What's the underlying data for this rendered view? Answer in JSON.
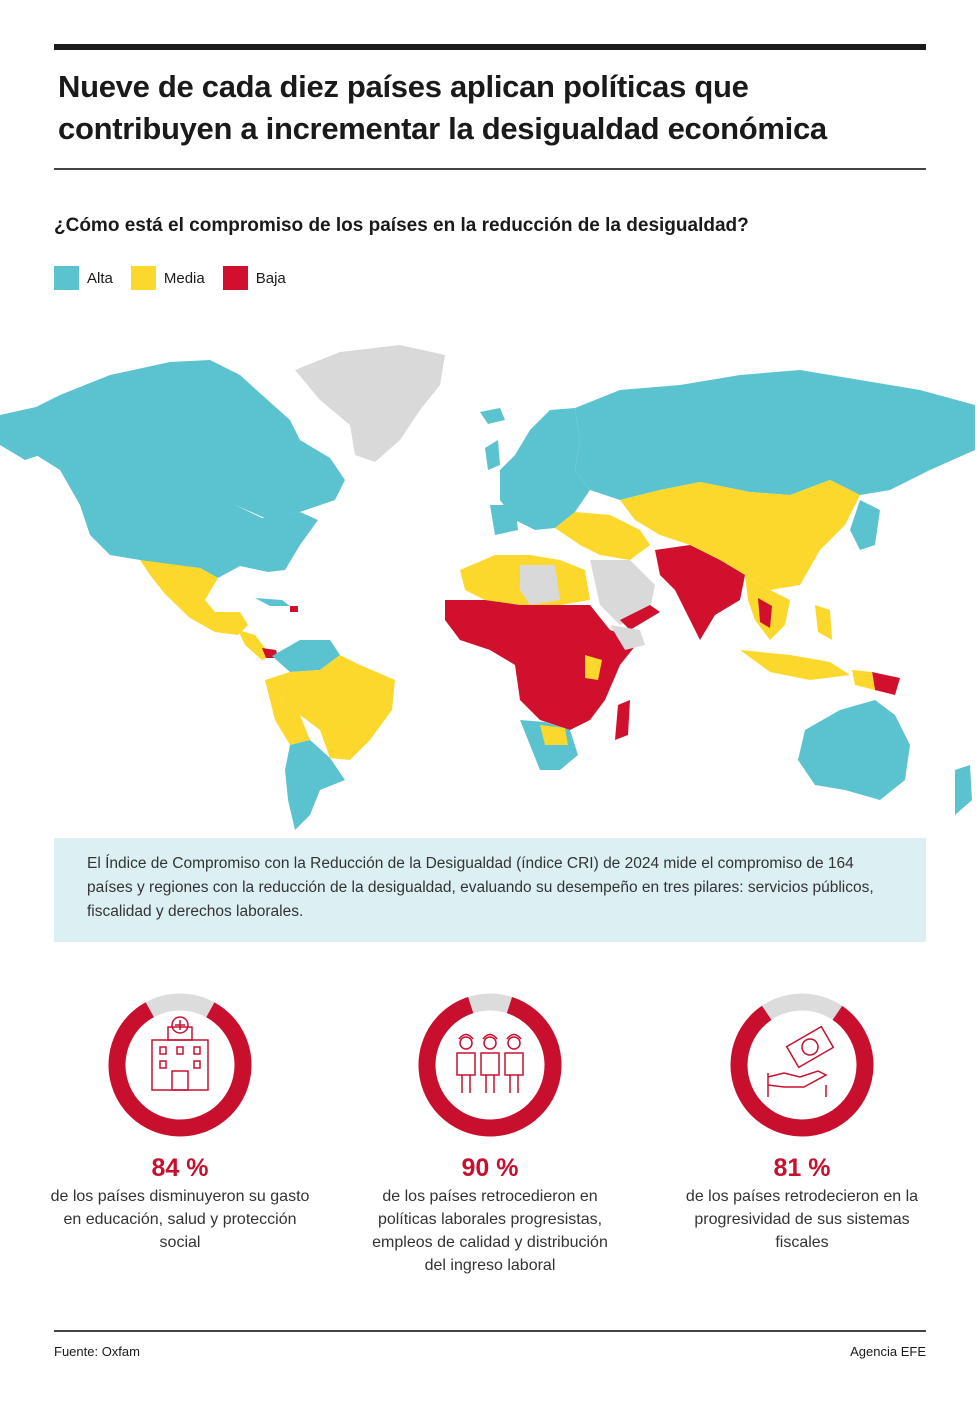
{
  "title": "Nueve de cada diez países aplican políticas que contribuyen a incrementar la desigualdad económica",
  "subtitle": "¿Cómo está el compromiso de los países en la reducción de la desigualdad?",
  "legend": [
    {
      "label": "Alta",
      "color": "#5bc3d0"
    },
    {
      "label": "Media",
      "color": "#fbd82b"
    },
    {
      "label": "Baja",
      "color": "#d0102d"
    }
  ],
  "colors": {
    "no_data": "#d9d9d9",
    "ring_bg": "#dcdcdc",
    "ring_fg": "#c8102e"
  },
  "info": "El  Índice de Compromiso con la Reducción de la Desigualdad (índice CRI) de 2024 mide el compromiso de 164 países y regiones con la reducción de la desigualdad, evaluando su desempeño en tres pilares: servicios públicos, fiscalidad y derechos laborales.",
  "stats": [
    {
      "percent_label": "84 %",
      "value": 84,
      "icon": "hospital-icon",
      "text": "de los países disminuyeron su gasto en educación, salud y protección social"
    },
    {
      "percent_label": "90 %",
      "value": 90,
      "icon": "workers-icon",
      "text": "de los países retrocedieron en políticas laborales progresistas, empleos de calidad y distribución del ingreso laboral"
    },
    {
      "percent_label": "81 %",
      "value": 81,
      "icon": "money-hand-icon",
      "text": "de los países retrodecieron en la progresividad de sus sistemas fiscales"
    }
  ],
  "footer": {
    "source": "Fuente: Oxfam",
    "agency": "Agencia EFE"
  }
}
